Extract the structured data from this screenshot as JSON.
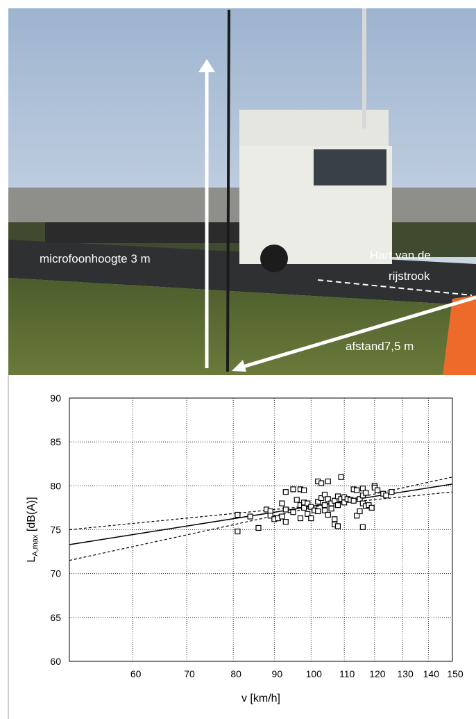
{
  "photo": {
    "labels": [
      "microfoonhoogte 3 m",
      "Hart van de",
      "rijstrook",
      "afstand7,5 m"
    ]
  },
  "chart_data": {
    "type": "scatter",
    "x_label": "v [km/h]",
    "y_label": {
      "main": "L",
      "sub": "A,max",
      "rest": " [dB(A)]"
    },
    "xlim": [
      50,
      150
    ],
    "ylim": [
      60,
      90
    ],
    "log_x": true,
    "grid": true,
    "xticks": [
      60,
      70,
      80,
      90,
      100,
      110,
      120,
      130,
      140,
      150
    ],
    "yticks": [
      60,
      65,
      70,
      75,
      80,
      85,
      90
    ],
    "points": {
      "marker": "square",
      "color": "#000000",
      "x": [
        81,
        81,
        84,
        86,
        88,
        89,
        89,
        90,
        91,
        92,
        92,
        93,
        93,
        93,
        95,
        95,
        96,
        97,
        97,
        97,
        98,
        98,
        98,
        99,
        99,
        100,
        100,
        101,
        102,
        102,
        102,
        103,
        103,
        104,
        104,
        104,
        105,
        105,
        105,
        106,
        106,
        107,
        107,
        107,
        108,
        108,
        108,
        109,
        109,
        110,
        110,
        111,
        112,
        113,
        113,
        114,
        114,
        115,
        115,
        116,
        116,
        116,
        116,
        117,
        117,
        118,
        119,
        120,
        120,
        121,
        123,
        124,
        126
      ],
      "values": [
        76.7,
        74.8,
        76.5,
        75.2,
        77.3,
        77.1,
        76.6,
        76.2,
        76.3,
        78,
        76.5,
        79.3,
        77.3,
        75.9,
        79.6,
        77,
        78.4,
        79.6,
        77.8,
        76.3,
        79.5,
        78.1,
        77.5,
        78,
        76.8,
        77.6,
        76.3,
        77.2,
        80.5,
        78.2,
        77.1,
        80.3,
        78.6,
        79,
        77.8,
        77.2,
        80.5,
        78.5,
        76.7,
        78,
        77.4,
        78.3,
        76.2,
        75.6,
        78.8,
        77.8,
        75.4,
        81,
        78.5,
        78.7,
        78.1,
        78.5,
        78.4,
        79.6,
        78.3,
        79.5,
        76.6,
        77.1,
        78.5,
        79.7,
        78.9,
        78,
        75.3,
        79.2,
        77.7,
        77.8,
        77.5,
        80,
        79.8,
        79.5,
        79.1,
        78.9,
        79.3
      ]
    },
    "lines": [
      {
        "style": "solid",
        "x": [
          50,
          150
        ],
        "values": [
          73.3,
          80.2
        ]
      },
      {
        "style": "dashed",
        "x": [
          50,
          150
        ],
        "values": [
          75,
          79.3
        ]
      },
      {
        "style": "dashed",
        "x": [
          50,
          150
        ],
        "values": [
          71.5,
          81
        ]
      }
    ]
  }
}
